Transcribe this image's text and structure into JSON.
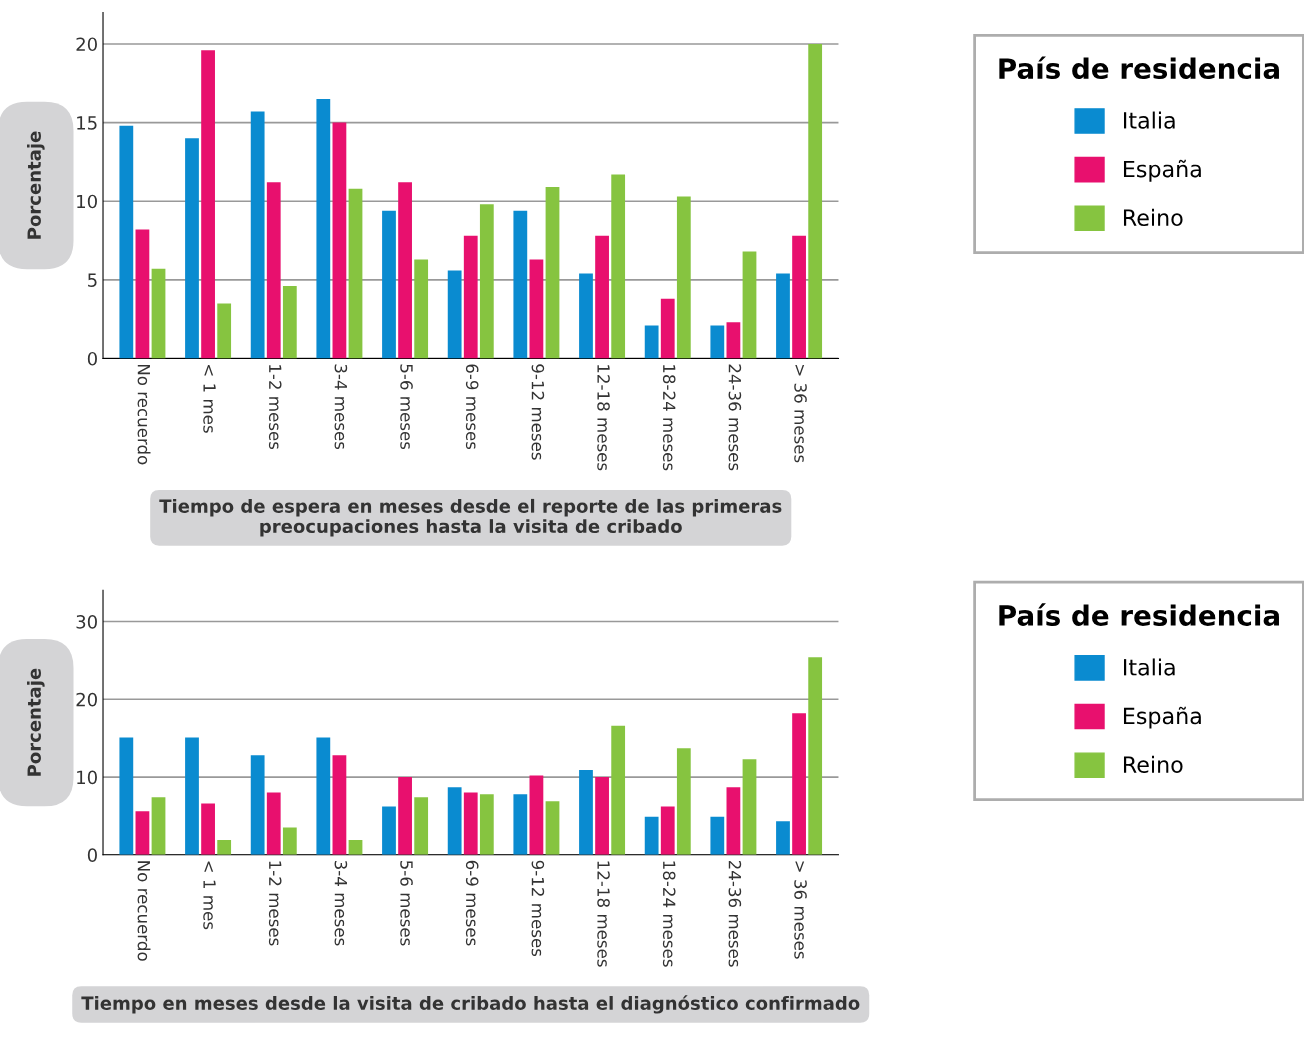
{
  "chart_data": [
    {
      "type": "bar",
      "xlabel": "Tiempo de espera en meses desde el reporte de las primeras\npreocupaciones hasta la visita de cribado",
      "ylabel": "Porcentaje",
      "legend_title": "País de residencia",
      "legend": "right",
      "categories": [
        "No recuerdo",
        "< 1 mes",
        "1-2 meses",
        "3-4 meses",
        "5-6 meses",
        "6-9 meses",
        "9-12 meses",
        "12-18 meses",
        "18-24 meses",
        "24-36 meses",
        "> 36 meses"
      ],
      "ylim": [
        0,
        22
      ],
      "yticks": [
        0,
        5,
        10,
        15,
        20
      ],
      "grid": "y",
      "series": [
        {
          "name": "Italia",
          "color": "#0a8bd0",
          "values": [
            14.8,
            14.0,
            15.7,
            16.5,
            9.4,
            5.6,
            9.4,
            5.4,
            2.1,
            2.1,
            5.4
          ]
        },
        {
          "name": "España",
          "color": "#e8106e",
          "values": [
            8.2,
            19.6,
            11.2,
            15.0,
            11.2,
            7.8,
            6.3,
            7.8,
            3.8,
            2.3,
            7.8
          ]
        },
        {
          "name": "Reino",
          "color": "#86c440",
          "values": [
            5.7,
            3.5,
            4.6,
            10.8,
            6.3,
            9.8,
            10.9,
            11.7,
            10.3,
            6.8,
            20.0
          ]
        }
      ]
    },
    {
      "type": "bar",
      "xlabel": "Tiempo en meses desde la visita de cribado hasta el diagnóstico confirmado",
      "ylabel": "Porcentaje",
      "legend_title": "País de residencia",
      "legend": "right",
      "categories": [
        "No recuerdo",
        "< 1 mes",
        "1-2 meses",
        "3-4 meses",
        "5-6 meses",
        "6-9 meses",
        "9-12 meses",
        "12-18 meses",
        "18-24 meses",
        "24-36 meses",
        "> 36 meses"
      ],
      "ylim": [
        0,
        34
      ],
      "yticks": [
        0,
        10,
        20,
        30
      ],
      "grid": "y",
      "series": [
        {
          "name": "Italia",
          "color": "#0a8bd0",
          "values": [
            15.1,
            15.1,
            12.8,
            15.1,
            6.2,
            8.7,
            7.8,
            10.9,
            4.9,
            4.9,
            4.3
          ]
        },
        {
          "name": "España",
          "color": "#e8106e",
          "values": [
            5.6,
            6.6,
            8.0,
            12.8,
            10.0,
            8.0,
            10.2,
            10.0,
            6.2,
            8.7,
            18.2
          ]
        },
        {
          "name": "Reino",
          "color": "#86c440",
          "values": [
            7.4,
            1.9,
            3.5,
            1.9,
            7.4,
            7.8,
            6.9,
            16.6,
            13.7,
            12.3,
            25.4
          ]
        }
      ]
    }
  ]
}
